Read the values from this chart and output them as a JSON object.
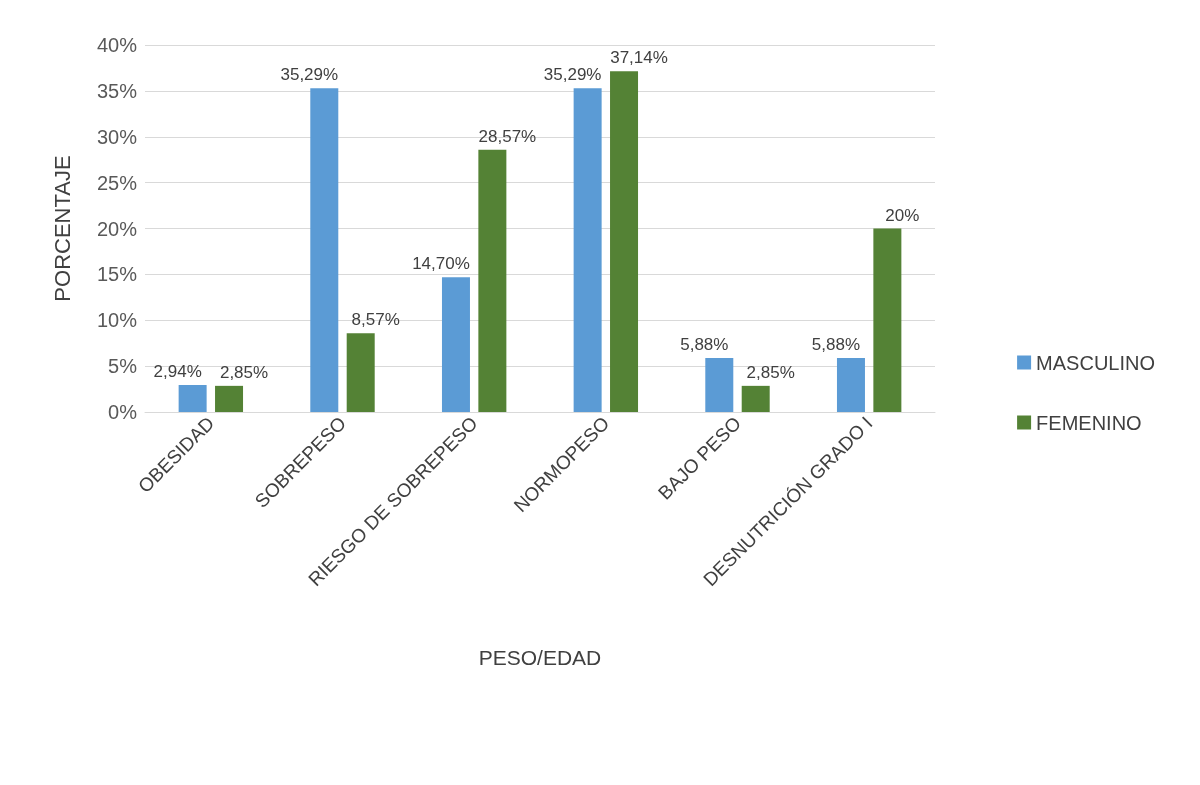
{
  "chart_data": {
    "type": "bar",
    "xlabel": "PESO/EDAD",
    "ylabel": "PORCENTAJE",
    "categories": [
      "OBESIDAD",
      "SOBREPESO",
      "RIESGO DE SOBREPESO",
      "NORMOPESO",
      "BAJO PESO",
      "DESNUTRICIÓN GRADO I"
    ],
    "series": [
      {
        "name": "MASCULINO",
        "color": "#5b9bd5",
        "values": [
          2.94,
          35.29,
          14.7,
          35.29,
          5.88,
          5.88
        ],
        "value_labels": [
          "2,94%",
          "35,29%",
          "14,70%",
          "35,29%",
          "5,88%",
          "5,88%"
        ]
      },
      {
        "name": "FEMENINO",
        "color": "#548235",
        "values": [
          2.85,
          8.57,
          28.57,
          37.14,
          2.85,
          20
        ],
        "value_labels": [
          "2,85%",
          "8,57%",
          "28,57%",
          "37,14%",
          "2,85%",
          "20%"
        ]
      }
    ],
    "ylim": [
      0,
      40
    ],
    "yticks": [
      {
        "value": 0,
        "label": "0%"
      },
      {
        "value": 5,
        "label": "5%"
      },
      {
        "value": 10,
        "label": "10%"
      },
      {
        "value": 15,
        "label": "15%"
      },
      {
        "value": 20,
        "label": "20%"
      },
      {
        "value": 25,
        "label": "25%"
      },
      {
        "value": 30,
        "label": "30%"
      },
      {
        "value": 35,
        "label": "35%"
      },
      {
        "value": 40,
        "label": "40%"
      }
    ],
    "grid": "y",
    "legend": "right"
  }
}
